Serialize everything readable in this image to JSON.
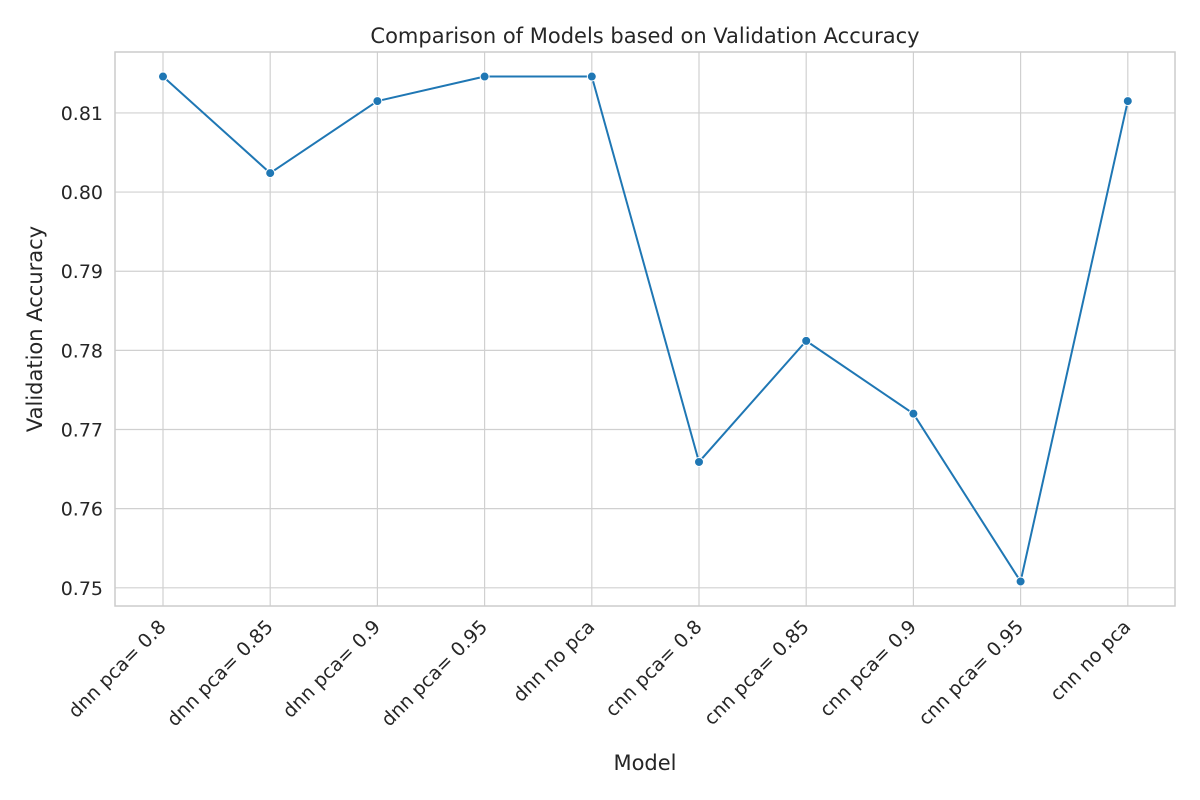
{
  "chart_data": {
    "type": "line",
    "title": "Comparison of Models based on Validation Accuracy",
    "xlabel": "Model",
    "ylabel": "Validation Accuracy",
    "categories": [
      "dnn pca= 0.8",
      "dnn pca= 0.85",
      "dnn pca= 0.9",
      "dnn pca= 0.95",
      "dnn no pca",
      "cnn pca= 0.8",
      "cnn pca= 0.85",
      "cnn pca= 0.9",
      "cnn pca= 0.95",
      "cnn no pca"
    ],
    "series": [
      {
        "values": [
          0.8146,
          0.8024,
          0.8115,
          0.8146,
          0.8146,
          0.7659,
          0.7812,
          0.772,
          0.7508,
          0.8115
        ]
      }
    ],
    "ylim": [
      0.7477,
      0.8177
    ],
    "yticks": [
      "0.75",
      "0.76",
      "0.77",
      "0.78",
      "0.79",
      "0.80",
      "0.81"
    ],
    "grid": true,
    "colors": {
      "line": "#1f77b4",
      "marker": "#1f77b4",
      "marker_edge": "#ffffff"
    }
  }
}
